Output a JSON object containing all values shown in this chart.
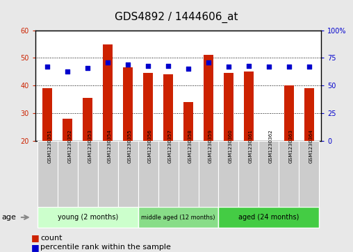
{
  "title": "GDS4892 / 1444606_at",
  "samples": [
    "GSM1230351",
    "GSM1230352",
    "GSM1230353",
    "GSM1230354",
    "GSM1230355",
    "GSM1230356",
    "GSM1230357",
    "GSM1230358",
    "GSM1230359",
    "GSM1230360",
    "GSM1230361",
    "GSM1230362",
    "GSM1230363",
    "GSM1230364"
  ],
  "counts": [
    39,
    28,
    35.5,
    55,
    46.5,
    44.5,
    44,
    34,
    51,
    44.5,
    45,
    20,
    40,
    39
  ],
  "percentile_ranks": [
    67,
    63,
    66,
    71,
    69,
    68,
    68,
    65,
    71,
    67,
    68,
    67,
    67,
    67
  ],
  "ylim_left": [
    20,
    60
  ],
  "ylim_right": [
    0,
    100
  ],
  "yticks_left": [
    20,
    30,
    40,
    50,
    60
  ],
  "yticks_right": [
    0,
    25,
    50,
    75,
    100
  ],
  "ytick_labels_right": [
    "0",
    "25",
    "50",
    "75",
    "100%"
  ],
  "bar_color": "#cc2200",
  "scatter_color": "#0000cc",
  "bar_bottom": 20,
  "groups": [
    {
      "label": "young (2 months)",
      "start": 0,
      "end": 5,
      "color": "#ccffcc"
    },
    {
      "label": "middle aged (12 months)",
      "start": 5,
      "end": 9,
      "color": "#88dd88"
    },
    {
      "label": "aged (24 months)",
      "start": 9,
      "end": 14,
      "color": "#44cc44"
    }
  ],
  "age_label": "age",
  "legend_count_label": "count",
  "legend_percentile_label": "percentile rank within the sample",
  "title_fontsize": 11,
  "axis_color_left": "#cc2200",
  "axis_color_right": "#0000cc",
  "fig_bg_color": "#e8e8e8",
  "plot_bg_color": "#ffffff",
  "label_box_color": "#cccccc",
  "spine_color": "#000000"
}
